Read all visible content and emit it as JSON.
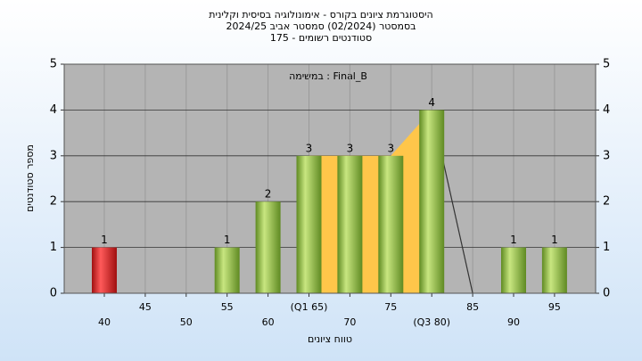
{
  "chart_data": {
    "type": "bar",
    "title": "היסטוגרמת ציונים בקורס - אימונולוגיה בסיסית וקלינית",
    "subtitle": "בסמסטר  (02/2024)  סמסטר אביב 2024/25",
    "subtitle2": "סטודנטים רשומים - 175",
    "annotation": "במשימה : Final_B",
    "x_label": "טווח ציונים",
    "y_label": "מספר סטודנטים",
    "categories": [
      "40",
      "45",
      "50",
      "55",
      "60",
      "(Q1 65)",
      "70",
      "75",
      "(Q3 80)",
      "85",
      "90",
      "95"
    ],
    "series": [
      {
        "color": "#8fbf3a",
        "colors": [
          "#e02020",
          "#8fbf3a",
          "#8fbf3a",
          "#8fbf3a",
          "#8fbf3a",
          "#8fbf3a",
          "#8fbf3a",
          "#8fbf3a",
          "#8fbf3a",
          "#8fbf3a",
          "#8fbf3a",
          "#8fbf3a"
        ],
        "values": [
          1,
          0,
          0,
          1,
          2,
          3,
          3,
          3,
          4,
          0,
          1,
          1
        ]
      },
      {
        "type": "area",
        "color": "#ffc64a",
        "values": [
          null,
          null,
          null,
          null,
          null,
          3,
          3,
          3,
          4,
          null,
          null,
          null
        ]
      },
      {
        "type": "line",
        "color": "#333333",
        "values": [
          null,
          null,
          null,
          null,
          null,
          null,
          null,
          null,
          4,
          0,
          null,
          null
        ]
      }
    ],
    "ylim": [
      0,
      5
    ],
    "yticks": [
      0,
      1,
      2,
      3,
      4,
      5
    ],
    "y2lim": [
      0,
      5
    ],
    "y2ticks": [
      0,
      1,
      2,
      3,
      4,
      5
    ],
    "grid": true
  }
}
